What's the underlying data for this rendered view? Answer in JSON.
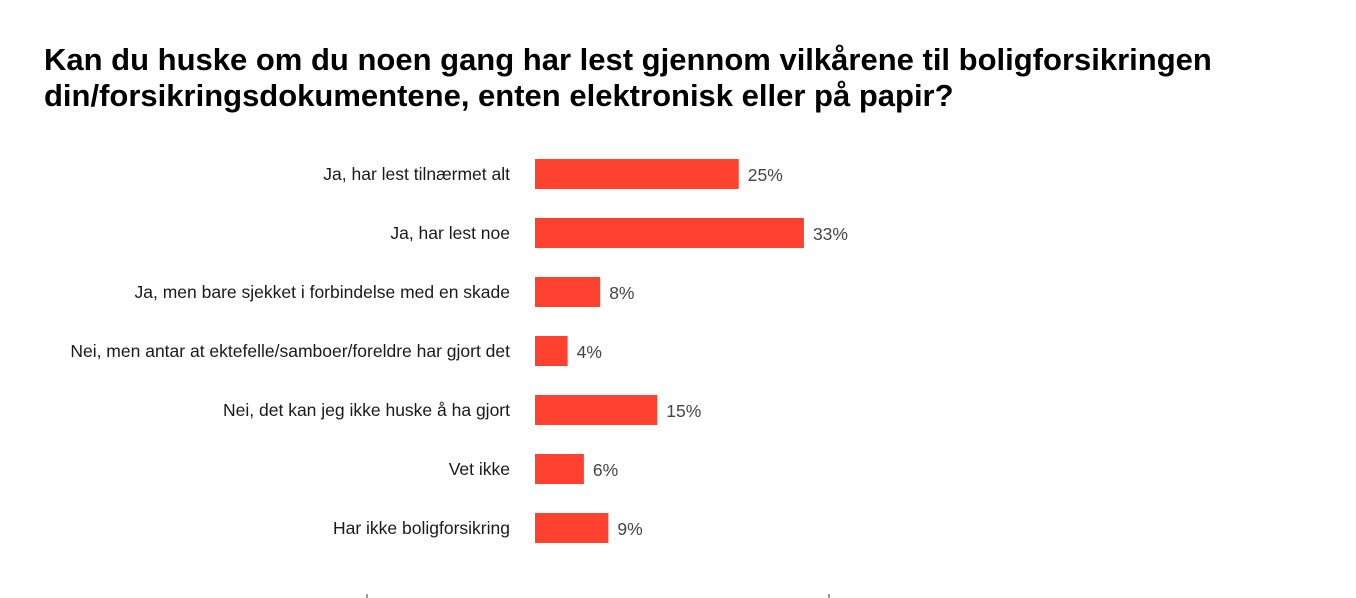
{
  "chart_data": {
    "type": "bar",
    "orientation": "horizontal",
    "title": "Kan du huske om du noen gang har lest gjennom vilkårene til boligforsikringen din/forsikringsdokumentene, enten elektronisk eller på papir?",
    "categories": [
      "Ja, har lest tilnærmet alt",
      "Ja, har lest noe",
      "Ja, men bare sjekket i forbindelse med en skade",
      "Nei, men antar at ektefelle/samboer/foreldre har gjort det",
      "Nei, det kan jeg ikke huske å ha gjort",
      "Vet ikke",
      "Har ikke boligforsikring"
    ],
    "values": [
      25,
      33,
      8,
      4,
      15,
      6,
      9
    ],
    "value_labels": [
      "25%",
      "33%",
      "8%",
      "4%",
      "15%",
      "6%",
      "9%"
    ],
    "unit": "%",
    "bar_color": "#ff4230",
    "grid": false,
    "legend": "none"
  }
}
